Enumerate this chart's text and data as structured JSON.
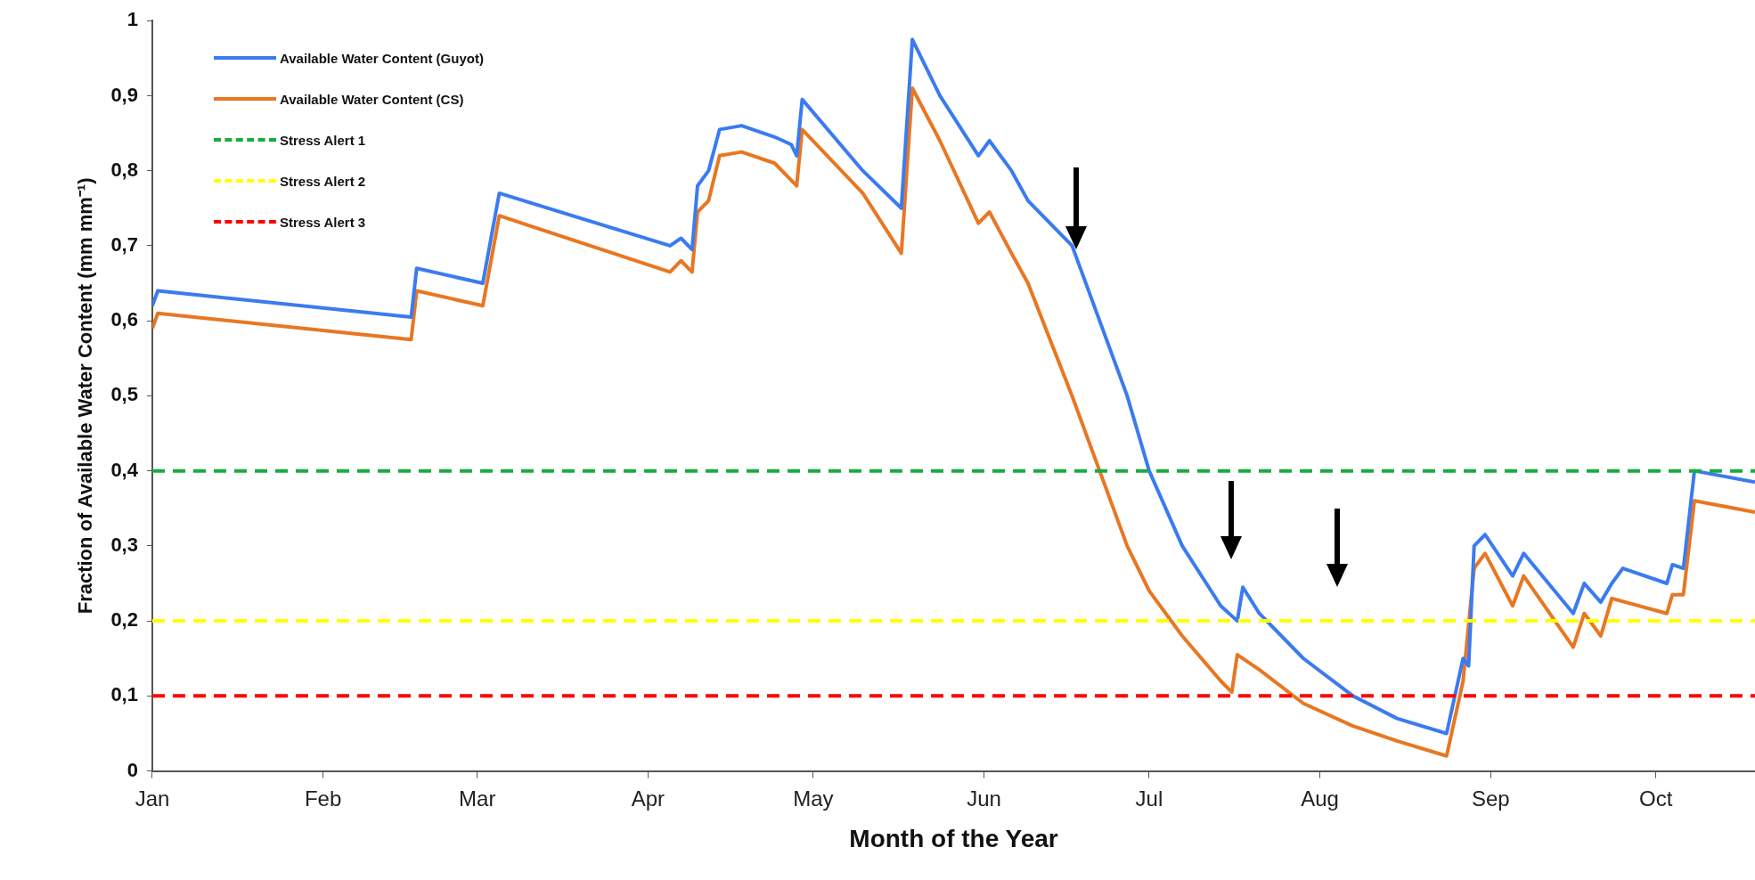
{
  "chart_data": {
    "type": "line",
    "xlabel": "Month of the Year",
    "ylabel": "Fraction of Available Water Content (mm mm⁻¹)",
    "xlim": [
      "--01-01",
      "--10-19"
    ],
    "xticks": [
      {
        "value": "--01-01",
        "label": "Jan"
      },
      {
        "value": "--02-01",
        "label": "Feb"
      },
      {
        "value": "--03-01",
        "label": "Mar"
      },
      {
        "value": "--04-01",
        "label": "Apr"
      },
      {
        "value": "--05-01",
        "label": "May"
      },
      {
        "value": "--06-01",
        "label": "Jun"
      },
      {
        "value": "--07-01",
        "label": "Jul"
      },
      {
        "value": "--08-01",
        "label": "Aug"
      },
      {
        "value": "--09-01",
        "label": "Sep"
      },
      {
        "value": "--10-01",
        "label": "Oct"
      }
    ],
    "ylim": [
      0,
      1
    ],
    "yticks": [
      0,
      {
        "value": 0.1,
        "label": "0,1"
      },
      {
        "value": 0.2,
        "label": "0,2"
      },
      {
        "value": 0.3,
        "label": "0,3"
      },
      {
        "value": 0.4,
        "label": "0,4"
      },
      {
        "value": 0.5,
        "label": "0,5"
      },
      {
        "value": 0.6,
        "label": "0,6"
      },
      {
        "value": 0.7,
        "label": "0,7"
      },
      {
        "value": 0.8,
        "label": "0,8"
      },
      {
        "value": 0.9,
        "label": "0,9"
      },
      1
    ],
    "grid": false,
    "legend": "top left",
    "line_style": "solid",
    "series": [
      {
        "name": "Available Water Content (Guyot)",
        "color": "#3b7bf0",
        "x": [
          "--01-01",
          "--01-02",
          "--02-17",
          "--02-18",
          "--03-02",
          "--03-05",
          "--04-05",
          "--04-07",
          "--04-09",
          "--04-10",
          "--04-11",
          "--04-12",
          "--04-14",
          "--04-18",
          "--04-22",
          "--04-24",
          "--04-27",
          "--04-28",
          "--04-29",
          "--05-10",
          "--05-17",
          "--05-19",
          "--05-24",
          "--05-31",
          "--06-02",
          "--06-06",
          "--06-09",
          "--06-17",
          "--06-22",
          "--06-27",
          "--07-01",
          "--07-07",
          "--07-14",
          "--07-17",
          "--07-18",
          "--07-21",
          "--07-29",
          "--08-07",
          "--08-15",
          "--08-24",
          "--08-27",
          "--08-28",
          "--08-29",
          "--08-31",
          "--09-05",
          "--09-07",
          "--09-16",
          "--09-18",
          "--09-21",
          "--09-23",
          "--09-25",
          "--10-03",
          "--10-04",
          "--10-06",
          "--10-08",
          "--10-19"
        ],
        "values": [
          0.62,
          0.64,
          0.605,
          0.67,
          0.65,
          0.77,
          0.7,
          0.71,
          0.695,
          0.78,
          0.79,
          0.8,
          0.855,
          0.86,
          0.85,
          0.845,
          0.835,
          0.82,
          0.895,
          0.8,
          0.75,
          0.975,
          0.9,
          0.82,
          0.84,
          0.8,
          0.76,
          0.7,
          0.6,
          0.5,
          0.4,
          0.3,
          0.22,
          0.2,
          0.245,
          0.21,
          0.15,
          0.1,
          0.07,
          0.05,
          0.15,
          0.14,
          0.3,
          0.315,
          0.26,
          0.29,
          0.21,
          0.25,
          0.225,
          0.25,
          0.27,
          0.25,
          0.275,
          0.27,
          0.4,
          0.385
        ]
      },
      {
        "name": "Available Water Content (CS)",
        "color": "#e87722",
        "x": [
          "--01-01",
          "--01-02",
          "--02-17",
          "--02-18",
          "--03-02",
          "--03-05",
          "--04-05",
          "--04-07",
          "--04-09",
          "--04-10",
          "--04-12",
          "--04-14",
          "--04-18",
          "--04-24",
          "--04-28",
          "--04-29",
          "--05-10",
          "--05-17",
          "--05-19",
          "--05-24",
          "--05-31",
          "--06-02",
          "--06-06",
          "--06-09",
          "--06-17",
          "--06-22",
          "--06-27",
          "--07-01",
          "--07-07",
          "--07-14",
          "--07-16",
          "--07-17",
          "--07-21",
          "--07-29",
          "--08-07",
          "--08-15",
          "--08-24",
          "--08-27",
          "--08-29",
          "--08-31",
          "--09-05",
          "--09-07",
          "--09-16",
          "--09-18",
          "--09-21",
          "--09-23",
          "--10-03",
          "--10-04",
          "--10-06",
          "--10-08",
          "--10-19"
        ],
        "values": [
          0.59,
          0.61,
          0.575,
          0.64,
          0.62,
          0.74,
          0.665,
          0.68,
          0.665,
          0.745,
          0.76,
          0.82,
          0.825,
          0.81,
          0.78,
          0.855,
          0.77,
          0.69,
          0.91,
          0.84,
          0.73,
          0.745,
          0.69,
          0.65,
          0.5,
          0.4,
          0.3,
          0.24,
          0.18,
          0.12,
          0.105,
          0.155,
          0.135,
          0.09,
          0.06,
          0.04,
          0.02,
          0.12,
          0.27,
          0.29,
          0.22,
          0.26,
          0.165,
          0.21,
          0.18,
          0.23,
          0.21,
          0.235,
          0.235,
          0.36,
          0.345
        ]
      }
    ],
    "ref_lines": [
      {
        "axis": "y",
        "value": 0.4,
        "label": "Stress Alert 1",
        "color": "#1aab40",
        "line_style": "dashed"
      },
      {
        "axis": "y",
        "value": 0.2,
        "label": "Stress Alert 2",
        "color": "#ffff00",
        "line_style": "dashed"
      },
      {
        "axis": "y",
        "value": 0.1,
        "label": "Stress Alert 3",
        "color": "#ff0000",
        "line_style": "dashed"
      }
    ]
  }
}
